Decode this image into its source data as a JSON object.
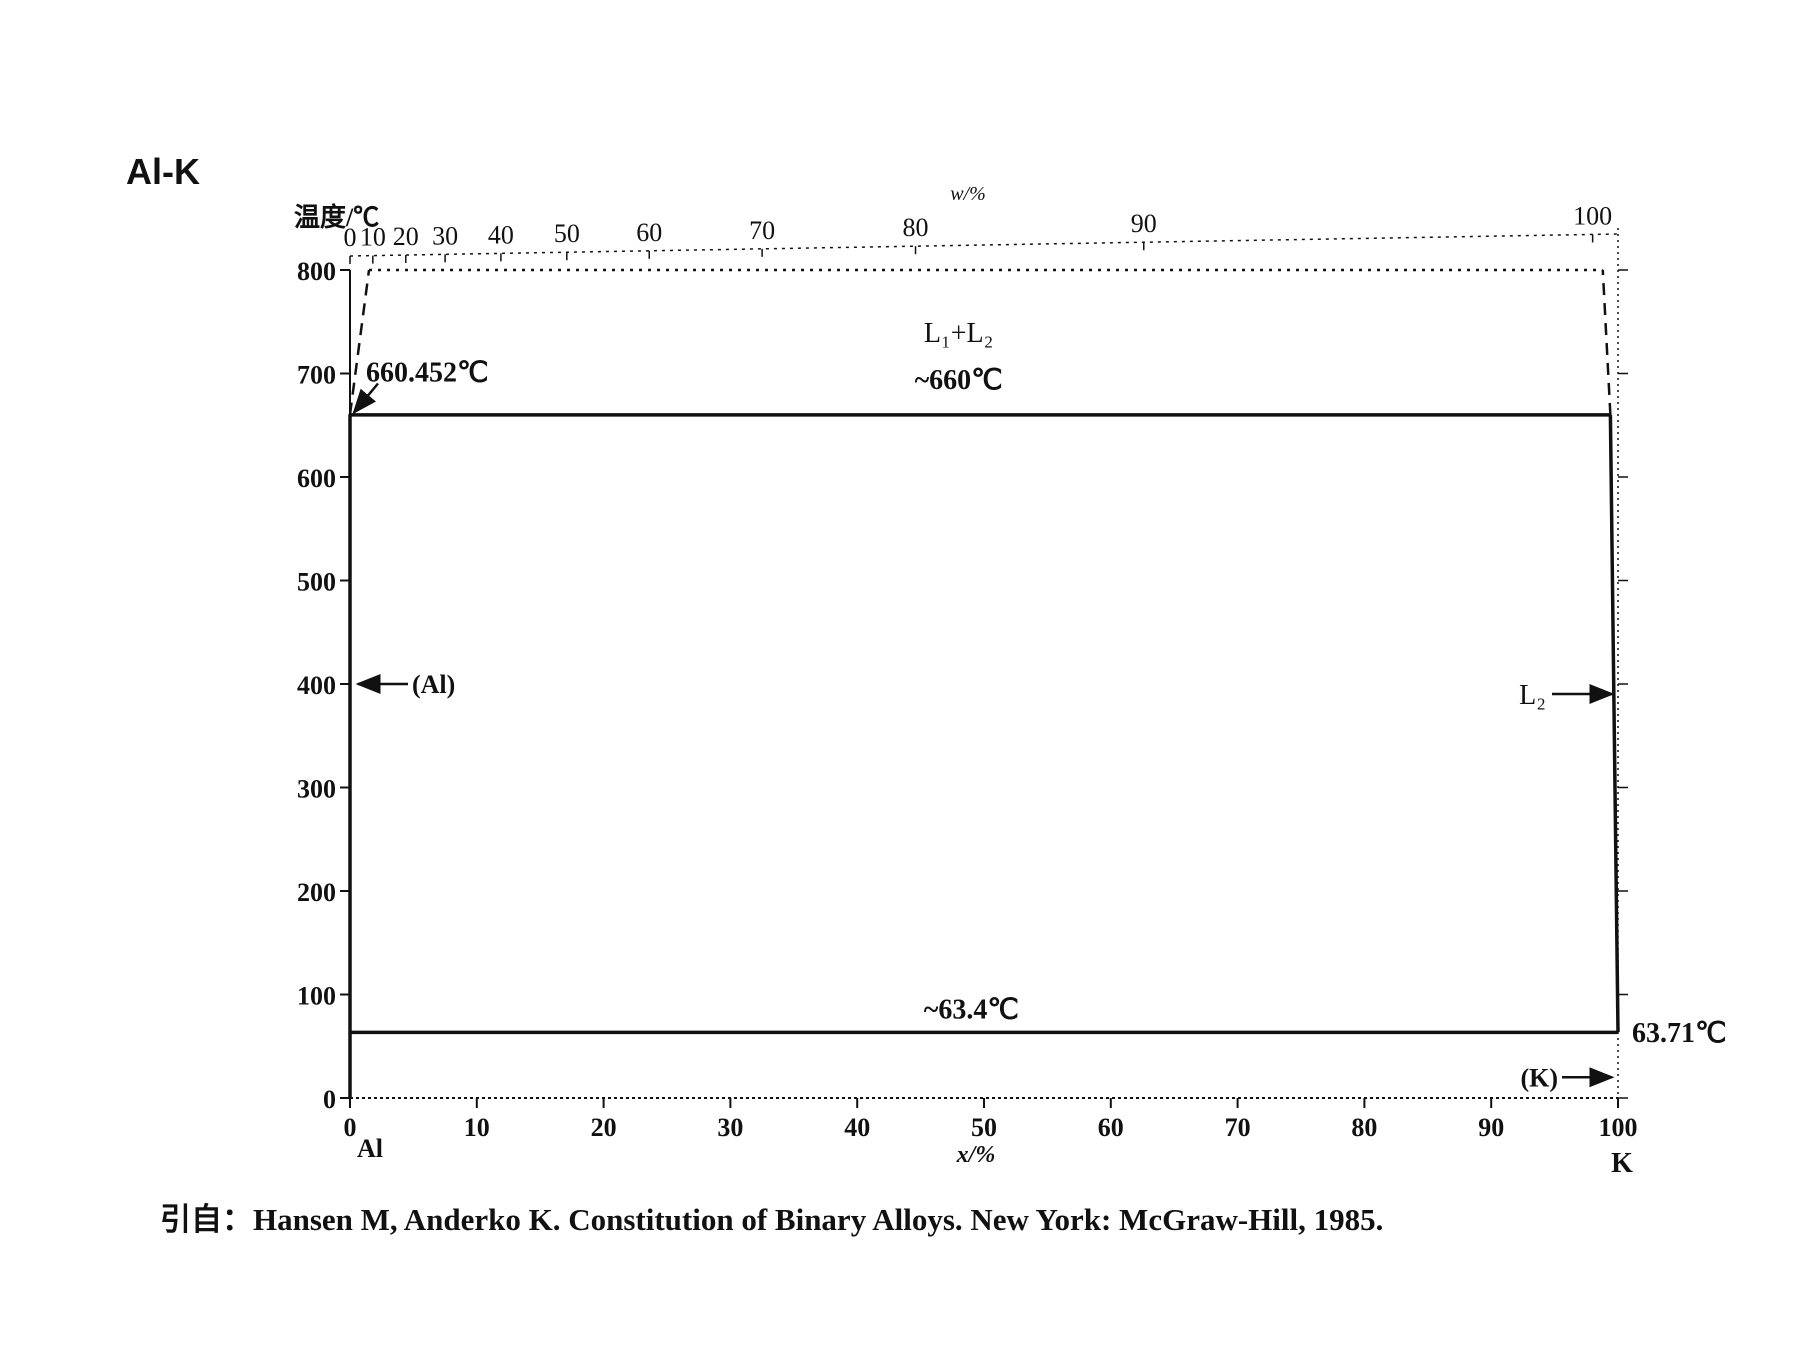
{
  "chart_data": {
    "type": "line",
    "title": "Al-K",
    "ylabel": "温度/℃",
    "xlabel_bottom": "x/%",
    "xlabel_top": "w/%",
    "xlim": [
      0,
      100
    ],
    "ylim": [
      0,
      800
    ],
    "bottom_ticks": [
      "0",
      "10",
      "20",
      "30",
      "40",
      "50",
      "60",
      "70",
      "80",
      "90",
      "100"
    ],
    "top_ticks": [
      "0",
      "10",
      "20",
      "30",
      "40",
      "50",
      "60",
      "70",
      "80",
      "90",
      "100"
    ],
    "top_ticks_at_x": [
      0,
      1.8,
      4.4,
      7.5,
      11.9,
      17.1,
      23.6,
      32.5,
      44.6,
      62.6,
      98
    ],
    "y_ticks": [
      "0",
      "100",
      "200",
      "300",
      "400",
      "500",
      "600",
      "700",
      "800"
    ],
    "left_end_label": "Al",
    "right_end_label": "K",
    "series": [
      {
        "style": "solid",
        "x": [
          0,
          0
        ],
        "y": [
          0,
          660.452
        ]
      },
      {
        "style": "solid",
        "x": [
          0,
          99.4
        ],
        "y": [
          660,
          660
        ]
      },
      {
        "style": "solid",
        "x": [
          99.4,
          100
        ],
        "y": [
          660,
          63.71
        ]
      },
      {
        "style": "solid",
        "x": [
          0,
          100
        ],
        "y": [
          63.4,
          63.4
        ]
      },
      {
        "style": "dashed",
        "x": [
          0,
          1.5
        ],
        "y": [
          660.452,
          800
        ]
      },
      {
        "style": "dashed",
        "x": [
          99.4,
          98.8
        ],
        "y": [
          660,
          800
        ]
      },
      {
        "style": "dotted",
        "x": [
          1.5,
          98.8
        ],
        "y": [
          800,
          800
        ]
      }
    ],
    "annotations": {
      "al_melting": "660.452℃",
      "monotectic": "~660℃",
      "eutectic": "~63.4℃",
      "k_melting": "63.71℃",
      "l1_l2": "L₁+L₂",
      "al_phase": "(Al)",
      "l2": "L₂",
      "k_phase": "(K)"
    }
  },
  "caption": "引自：Hansen M, Anderko K. Constitution of Binary Alloys. New York: McGraw-Hill, 1985."
}
